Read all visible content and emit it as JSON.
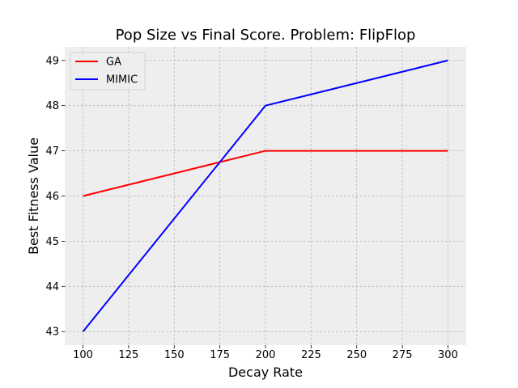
{
  "chart_data": {
    "type": "line",
    "title": "Pop Size vs Final Score.  Problem: FlipFlop",
    "xlabel": "Decay Rate",
    "ylabel": "Best Fitness Value",
    "x": [
      100,
      200,
      300
    ],
    "series": [
      {
        "name": "GA",
        "values": [
          46,
          47,
          47
        ],
        "color": "#ff0000"
      },
      {
        "name": "MIMIC",
        "values": [
          43,
          48,
          49
        ],
        "color": "#0000ff"
      }
    ],
    "xlim": [
      90,
      310
    ],
    "ylim": [
      42.7,
      49.3
    ],
    "xticks": [
      100,
      125,
      150,
      175,
      200,
      225,
      250,
      275,
      300
    ],
    "yticks": [
      43,
      44,
      45,
      46,
      47,
      48,
      49
    ],
    "grid": true,
    "legend_position": "top-left",
    "background_color": "#eeeeee",
    "grid_color": "#b2b2b2"
  }
}
